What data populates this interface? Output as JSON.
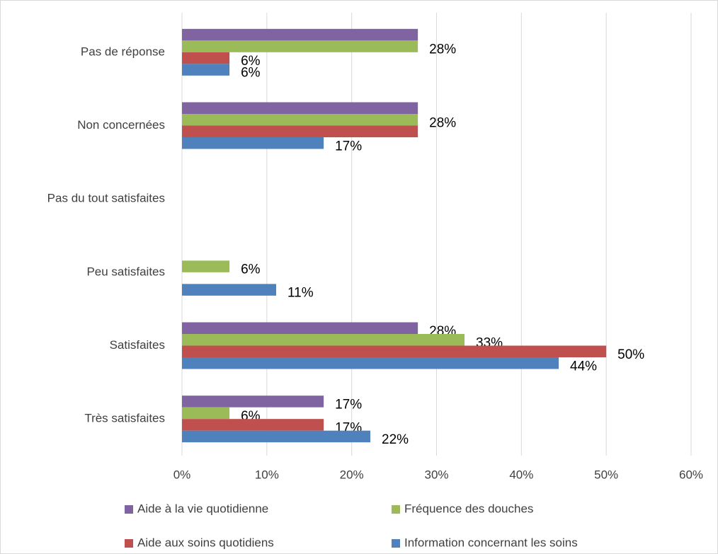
{
  "chart_data": {
    "type": "hbar",
    "categories": [
      "Pas de réponse",
      "Non concernées",
      "Pas du tout satisfaites",
      "Peu satisfaites",
      "Satisfaites",
      "Très satisfaites"
    ],
    "series": [
      {
        "name": "Aide à la vie quotidienne",
        "color": "#8064a2",
        "values": [
          27.8,
          27.8,
          0,
          0,
          27.8,
          16.7
        ],
        "value_labels": [
          null,
          null,
          null,
          null,
          "28%",
          "17%"
        ]
      },
      {
        "name": "Fréquence des douches",
        "color": "#9bbb59",
        "values": [
          27.8,
          27.8,
          0,
          5.6,
          33.3,
          5.6
        ],
        "value_labels": [
          "28%",
          "28%",
          null,
          "6%",
          "33%",
          "6%"
        ]
      },
      {
        "name": "Aide aux soins quotidiens",
        "color": "#c0504d",
        "values": [
          5.6,
          27.8,
          0,
          0,
          50,
          16.7
        ],
        "value_labels": [
          "6%",
          null,
          null,
          null,
          "50%",
          "17%"
        ]
      },
      {
        "name": "Information concernant les soins",
        "color": "#4f81bd",
        "values": [
          5.6,
          16.7,
          0,
          11.1,
          44.4,
          22.2
        ],
        "value_labels": [
          "6%",
          "17%",
          null,
          "11%",
          "44%",
          "22%"
        ]
      }
    ],
    "xlim": [
      0,
      60
    ],
    "xticks": [
      {
        "value": 0,
        "label": "0%"
      },
      {
        "value": 10,
        "label": "10%"
      },
      {
        "value": 20,
        "label": "20%"
      },
      {
        "value": 30,
        "label": "30%"
      },
      {
        "value": 40,
        "label": "40%"
      },
      {
        "value": 50,
        "label": "50%"
      },
      {
        "value": 60,
        "label": "60%"
      }
    ],
    "grid": true,
    "legend": "bottom"
  }
}
